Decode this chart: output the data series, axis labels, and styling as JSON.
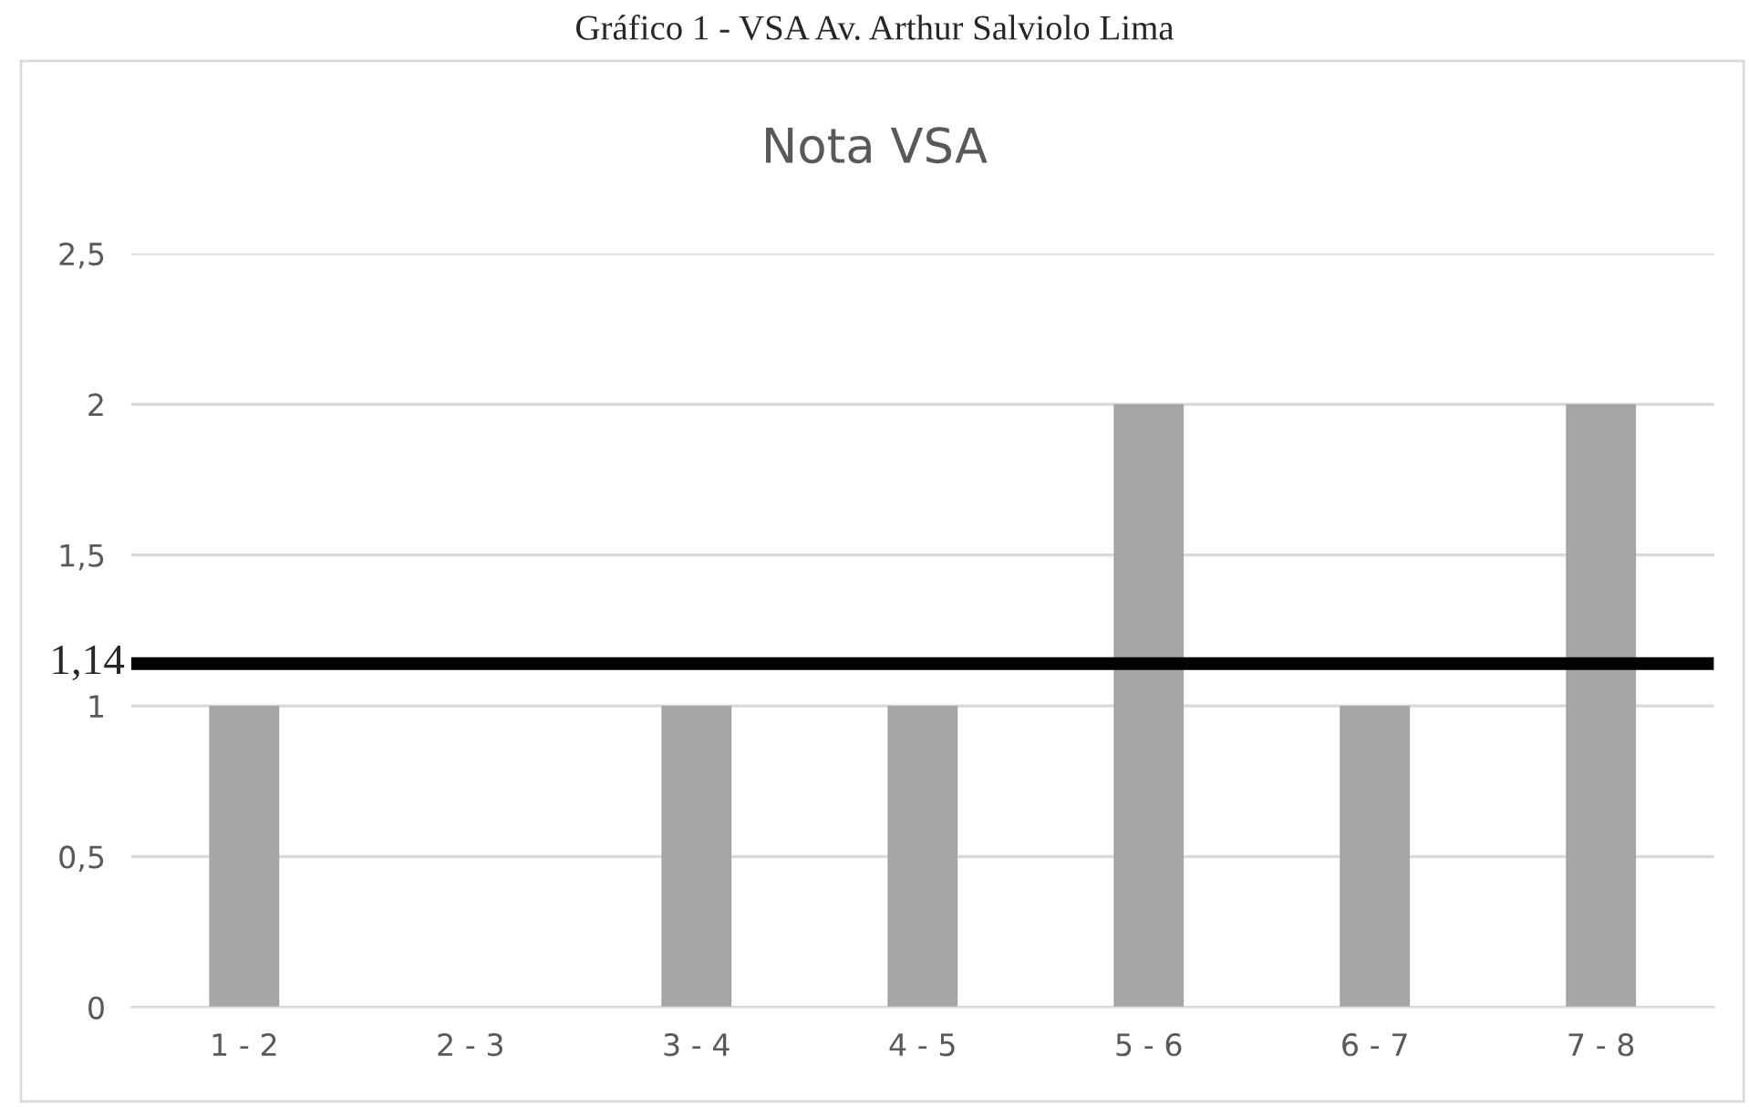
{
  "chart_data": {
    "type": "bar",
    "title": "Gráfico 1 - VSA Av. Arthur Salviolo Lima",
    "subtitle": "Nota VSA",
    "categories": [
      "1 - 2",
      "2 - 3",
      "3 - 4",
      "4 - 5",
      "5 - 6",
      "6 - 7",
      "7 - 8"
    ],
    "values": [
      1,
      0,
      1,
      1,
      2,
      1,
      2
    ],
    "color": "#a5a5a5",
    "ylim": [
      0,
      2.5
    ],
    "yticks": [
      0,
      {
        "value": 0.5,
        "label": "0,5"
      },
      1,
      {
        "value": 1.5,
        "label": "1,5"
      },
      2,
      {
        "value": 2.5,
        "label": "2,5"
      }
    ],
    "grid": "y",
    "ref_lines": [
      {
        "axis": "y",
        "value": 1.14,
        "label": "1,14",
        "color": "#000000",
        "line_style": "solid"
      }
    ]
  }
}
